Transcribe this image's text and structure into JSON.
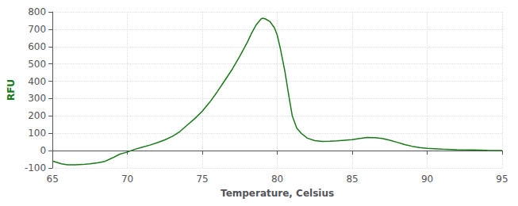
{
  "chart_data": {
    "type": "line",
    "xlabel": "Temperature, Celsius",
    "ylabel": "RFU",
    "x": [
      65.0,
      65.3,
      65.6,
      66.0,
      66.5,
      67.0,
      67.5,
      68.0,
      68.5,
      69.0,
      69.5,
      70.0,
      70.5,
      71.0,
      71.5,
      72.0,
      72.5,
      73.0,
      73.5,
      74.0,
      74.5,
      75.0,
      75.5,
      76.0,
      76.5,
      77.0,
      77.5,
      78.0,
      78.3,
      78.6,
      78.9,
      79.0,
      79.2,
      79.5,
      79.8,
      80.0,
      80.2,
      80.5,
      80.8,
      81.0,
      81.3,
      81.6,
      82.0,
      82.5,
      83.0,
      83.5,
      84.0,
      84.5,
      85.0,
      85.5,
      86.0,
      86.5,
      87.0,
      87.5,
      88.0,
      88.5,
      89.0,
      89.5,
      90.0,
      91.0,
      92.0,
      93.0,
      94.0,
      95.0
    ],
    "values": [
      -60,
      -68,
      -76,
      -82,
      -82,
      -80,
      -76,
      -70,
      -62,
      -42,
      -20,
      -8,
      8,
      20,
      32,
      46,
      62,
      82,
      110,
      148,
      185,
      228,
      280,
      340,
      405,
      470,
      545,
      625,
      680,
      726,
      758,
      763,
      760,
      745,
      710,
      665,
      590,
      460,
      300,
      200,
      130,
      100,
      72,
      58,
      53,
      54,
      56,
      60,
      63,
      70,
      76,
      75,
      70,
      60,
      48,
      35,
      25,
      18,
      13,
      8,
      5,
      4,
      2,
      1
    ],
    "color": "#1a7a1a",
    "xlim": [
      65,
      95
    ],
    "ylim": [
      -100,
      800
    ],
    "xticks": [
      65,
      70,
      75,
      80,
      85,
      90,
      95
    ],
    "yticks": [
      -100,
      0,
      100,
      200,
      300,
      400,
      500,
      600,
      700,
      800
    ],
    "grid": true
  }
}
